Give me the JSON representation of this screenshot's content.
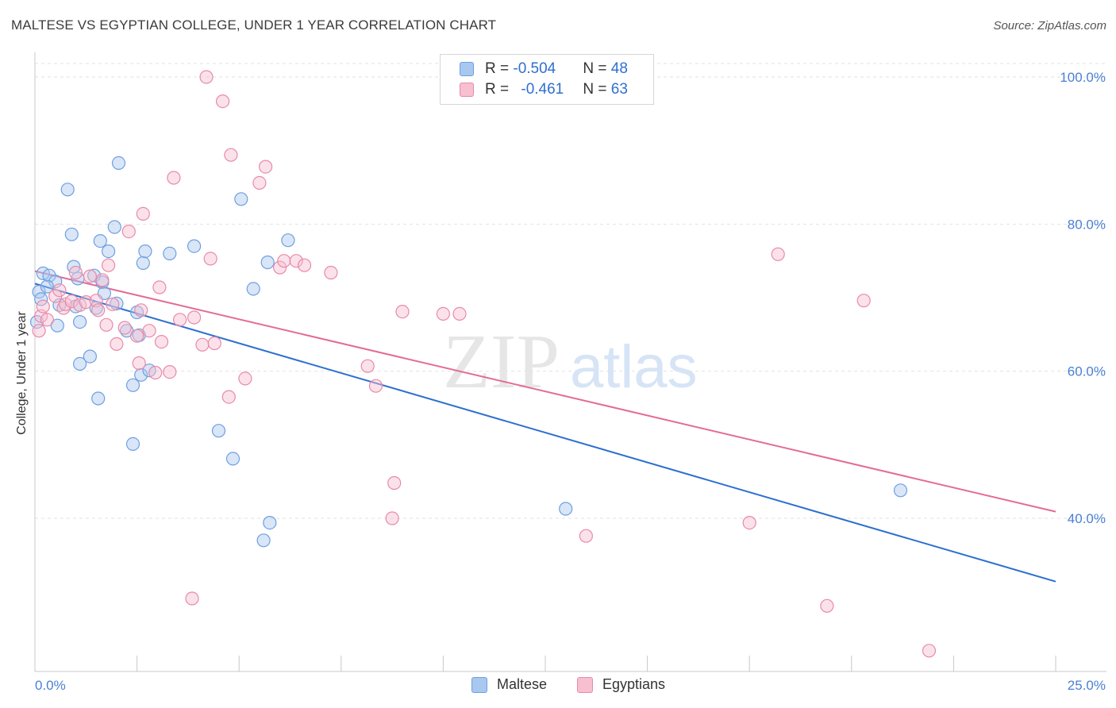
{
  "title": "MALTESE VS EGYPTIAN COLLEGE, UNDER 1 YEAR CORRELATION CHART",
  "source": "Source: ZipAtlas.com",
  "watermark": {
    "zip": "ZIP",
    "atlas": "atlas"
  },
  "legend": {
    "rows": [
      {
        "r_label": "R = ",
        "r_value": "-0.504",
        "n_label": "N = ",
        "n_value": "48",
        "color": "#a8c8f0",
        "border": "#6f9fe0"
      },
      {
        "r_label": "R = ",
        "r_value": "-0.461",
        "n_label": "N = ",
        "n_value": "63",
        "color": "#f7bfd0",
        "border": "#e88aa8"
      }
    ]
  },
  "bottom_legend": [
    {
      "label": "Maltese",
      "color": "#a8c8f0",
      "border": "#6f9fe0"
    },
    {
      "label": "Egyptians",
      "color": "#f7bfd0",
      "border": "#e88aa8"
    }
  ],
  "chart_data": {
    "type": "scatter",
    "title": "MALTESE VS EGYPTIAN COLLEGE, UNDER 1 YEAR CORRELATION CHART",
    "xlabel": "",
    "ylabel": "College, Under 1 year",
    "xlim": [
      0,
      25
    ],
    "ylim": [
      20,
      102
    ],
    "x_tick_labels": [
      "0.0%",
      "25.0%"
    ],
    "y_ticks": [
      40,
      60,
      80,
      100
    ],
    "y_tick_labels": [
      "40.0%",
      "60.0%",
      "80.0%",
      "100.0%"
    ],
    "grid": true,
    "series": [
      {
        "name": "Maltese",
        "color": "#6f9fe0",
        "fill": "#a8c8f0",
        "trend": {
          "x": [
            0,
            25
          ],
          "y": [
            71.9,
            31.4
          ],
          "color": "#2d6fd0"
        },
        "points": [
          [
            0.1,
            70.8
          ],
          [
            0.2,
            73.3
          ],
          [
            0.35,
            73.0
          ],
          [
            0.5,
            72.2
          ],
          [
            0.55,
            66.2
          ],
          [
            0.6,
            69.0
          ],
          [
            0.8,
            84.7
          ],
          [
            0.9,
            78.6
          ],
          [
            0.95,
            74.2
          ],
          [
            1.0,
            68.8
          ],
          [
            1.05,
            72.6
          ],
          [
            1.1,
            66.7
          ],
          [
            1.1,
            61.0
          ],
          [
            1.35,
            62.0
          ],
          [
            1.45,
            73.0
          ],
          [
            1.55,
            56.3
          ],
          [
            1.6,
            77.7
          ],
          [
            1.65,
            72.1
          ],
          [
            1.7,
            70.6
          ],
          [
            1.8,
            76.3
          ],
          [
            1.95,
            79.6
          ],
          [
            2.0,
            69.2
          ],
          [
            2.05,
            88.3
          ],
          [
            2.25,
            65.5
          ],
          [
            2.4,
            50.1
          ],
          [
            2.4,
            58.1
          ],
          [
            2.5,
            68.0
          ],
          [
            2.55,
            64.9
          ],
          [
            2.6,
            59.5
          ],
          [
            2.65,
            74.7
          ],
          [
            2.7,
            76.3
          ],
          [
            2.8,
            60.1
          ],
          [
            3.3,
            76.0
          ],
          [
            3.9,
            77.0
          ],
          [
            4.5,
            51.9
          ],
          [
            4.85,
            48.1
          ],
          [
            5.05,
            83.4
          ],
          [
            5.35,
            71.2
          ],
          [
            5.6,
            37.0
          ],
          [
            5.7,
            74.8
          ],
          [
            5.75,
            39.4
          ],
          [
            6.2,
            77.8
          ],
          [
            13.0,
            41.3
          ],
          [
            21.2,
            43.8
          ],
          [
            0.05,
            66.7
          ],
          [
            0.15,
            69.8
          ],
          [
            0.3,
            71.5
          ],
          [
            1.5,
            68.6
          ]
        ]
      },
      {
        "name": "Egyptians",
        "color": "#e88aa8",
        "fill": "#f7bfd0",
        "trend": {
          "x": [
            0,
            25
          ],
          "y": [
            73.6,
            40.9
          ],
          "color": "#e36b95"
        },
        "points": [
          [
            0.1,
            65.5
          ],
          [
            0.15,
            67.5
          ],
          [
            0.3,
            67.0
          ],
          [
            0.5,
            70.2
          ],
          [
            0.6,
            71.0
          ],
          [
            0.7,
            68.6
          ],
          [
            0.75,
            69.1
          ],
          [
            0.9,
            69.5
          ],
          [
            1.0,
            73.4
          ],
          [
            1.1,
            69.0
          ],
          [
            1.25,
            69.4
          ],
          [
            1.35,
            72.9
          ],
          [
            1.5,
            69.6
          ],
          [
            1.55,
            68.3
          ],
          [
            1.65,
            72.4
          ],
          [
            1.75,
            66.3
          ],
          [
            1.8,
            74.4
          ],
          [
            1.9,
            69.1
          ],
          [
            2.0,
            63.7
          ],
          [
            2.2,
            65.9
          ],
          [
            2.3,
            79.0
          ],
          [
            2.5,
            64.8
          ],
          [
            2.55,
            61.1
          ],
          [
            2.6,
            68.3
          ],
          [
            2.65,
            81.4
          ],
          [
            2.8,
            65.5
          ],
          [
            2.95,
            59.8
          ],
          [
            3.05,
            71.4
          ],
          [
            3.1,
            64.0
          ],
          [
            3.3,
            59.9
          ],
          [
            3.4,
            86.3
          ],
          [
            3.55,
            67.0
          ],
          [
            3.85,
            29.1
          ],
          [
            3.9,
            67.3
          ],
          [
            4.1,
            63.6
          ],
          [
            4.2,
            100.0
          ],
          [
            4.3,
            75.3
          ],
          [
            4.4,
            63.8
          ],
          [
            4.6,
            96.7
          ],
          [
            4.75,
            56.5
          ],
          [
            4.8,
            89.4
          ],
          [
            5.15,
            59.0
          ],
          [
            5.5,
            85.6
          ],
          [
            5.65,
            87.8
          ],
          [
            6.0,
            74.1
          ],
          [
            6.1,
            75.0
          ],
          [
            6.4,
            75.0
          ],
          [
            6.6,
            74.4
          ],
          [
            7.25,
            73.4
          ],
          [
            8.15,
            60.7
          ],
          [
            8.35,
            58.0
          ],
          [
            8.8,
            44.8
          ],
          [
            8.75,
            40.0
          ],
          [
            9.0,
            68.1
          ],
          [
            10.0,
            67.8
          ],
          [
            10.4,
            67.8
          ],
          [
            13.5,
            37.6
          ],
          [
            17.5,
            39.4
          ],
          [
            18.2,
            75.9
          ],
          [
            19.4,
            28.1
          ],
          [
            20.3,
            69.6
          ],
          [
            21.9,
            22.0
          ],
          [
            0.2,
            68.8
          ]
        ]
      }
    ]
  }
}
